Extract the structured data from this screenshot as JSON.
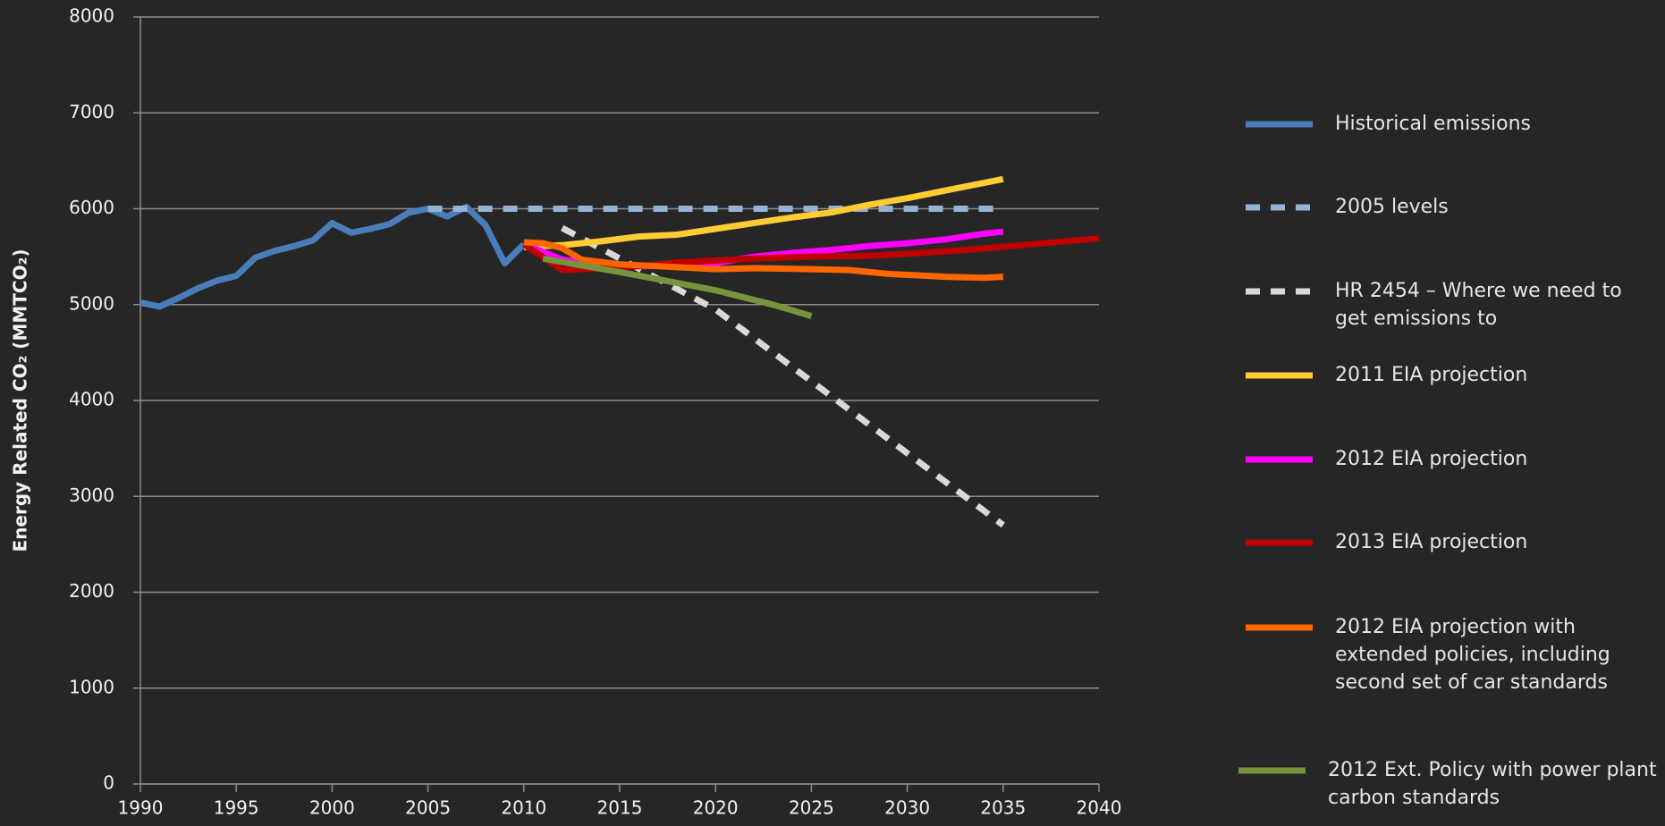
{
  "chart_data": {
    "type": "line",
    "y_label": "Energy Related CO₂ (MMTCO₂)",
    "xlim": [
      1990,
      2040
    ],
    "xticks": [
      1990,
      1995,
      2000,
      2005,
      2010,
      2015,
      2020,
      2025,
      2030,
      2035,
      2040
    ],
    "ylim": [
      0,
      8000
    ],
    "yticks": [
      0,
      1000,
      2000,
      3000,
      4000,
      5000,
      6000,
      7000,
      8000
    ],
    "grid": true,
    "series": [
      {
        "name": "Historical emissions",
        "color": "#4a7ebb",
        "dash": false,
        "x": [
          1990,
          1991,
          1992,
          1993,
          1994,
          1995,
          1996,
          1997,
          1998,
          1999,
          2000,
          2001,
          2002,
          2003,
          2004,
          2005,
          2006,
          2007,
          2008,
          2009,
          2010
        ],
        "values": [
          5020,
          4980,
          5070,
          5170,
          5250,
          5300,
          5490,
          5560,
          5610,
          5670,
          5850,
          5750,
          5790,
          5840,
          5960,
          6000,
          5920,
          6020,
          5830,
          5430,
          5630
        ]
      },
      {
        "name": "2005  levels",
        "color": "#95b3d7",
        "dash": true,
        "x": [
          2005,
          2035
        ],
        "values": [
          6000,
          6000
        ]
      },
      {
        "name": "HR 2454  –  Where we need to get emissions to",
        "color": "#d9d9d9",
        "dash": true,
        "x": [
          2012,
          2020,
          2035
        ],
        "values": [
          5800,
          4950,
          2700
        ]
      },
      {
        "name": "2011 EIA projection",
        "color": "#ffcc33",
        "dash": false,
        "x": [
          2010,
          2012,
          2014,
          2016,
          2018,
          2020,
          2022,
          2024,
          2026,
          2028,
          2030,
          2032,
          2035
        ],
        "values": [
          5600,
          5620,
          5660,
          5710,
          5730,
          5790,
          5850,
          5910,
          5960,
          6040,
          6110,
          6190,
          6310
        ]
      },
      {
        "name": "2012 EIA projection",
        "color": "#ff00ff",
        "dash": false,
        "x": [
          2010,
          2012,
          2014,
          2016,
          2018,
          2020,
          2022,
          2024,
          2026,
          2028,
          2030,
          2032,
          2034,
          2035
        ],
        "values": [
          5630,
          5470,
          5420,
          5400,
          5410,
          5430,
          5500,
          5540,
          5570,
          5610,
          5640,
          5680,
          5740,
          5760
        ]
      },
      {
        "name": "2013 EIA projection",
        "color": "#c00000",
        "dash": false,
        "x": [
          2010,
          2012,
          2014,
          2016,
          2018,
          2020,
          2022,
          2025,
          2028,
          2030,
          2033,
          2036,
          2040
        ],
        "values": [
          5630,
          5360,
          5380,
          5400,
          5440,
          5460,
          5480,
          5500,
          5510,
          5530,
          5570,
          5620,
          5690
        ]
      },
      {
        "name": "2012  EIA projection with extended policies, including second set of car standards",
        "color": "#ff6600",
        "dash": false,
        "x": [
          2010,
          2011,
          2012,
          2013,
          2015,
          2017,
          2020,
          2022,
          2025,
          2027,
          2029,
          2032,
          2034,
          2035
        ],
        "values": [
          5650,
          5640,
          5590,
          5470,
          5420,
          5400,
          5370,
          5380,
          5370,
          5360,
          5320,
          5290,
          5280,
          5290
        ]
      },
      {
        "name": "2012 Ext. Policy with power plant carbon standards",
        "color": "#77933c",
        "dash": false,
        "x": [
          2011,
          2015,
          2020,
          2023,
          2025
        ],
        "values": [
          5480,
          5340,
          5150,
          5000,
          4880
        ]
      }
    ]
  }
}
